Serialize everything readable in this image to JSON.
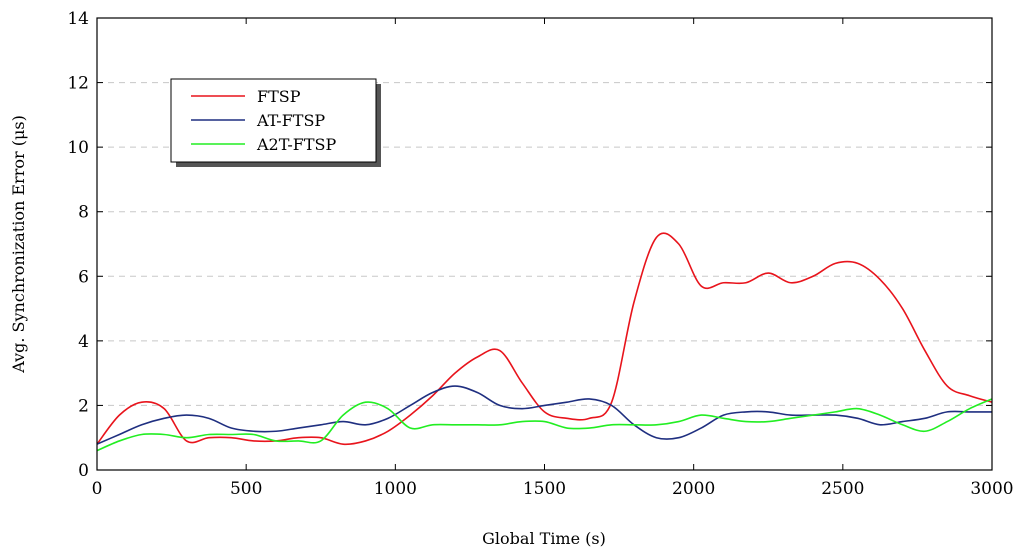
{
  "chart_data": {
    "type": "line",
    "xlabel": "Global Time (s)",
    "ylabel": "Avg. Synchronization Error (μs)",
    "xlim": [
      0,
      3000
    ],
    "ylim": [
      0,
      14
    ],
    "xticks": [
      0,
      500,
      1000,
      1500,
      2000,
      2500,
      3000
    ],
    "yticks": [
      0,
      2,
      4,
      6,
      8,
      10,
      12,
      14
    ],
    "grid": "horizontal-dashed",
    "legend_position": "top-left",
    "series": [
      {
        "name": "FTSP",
        "color": "#e8141c",
        "x": [
          0,
          75,
          150,
          225,
          300,
          375,
          450,
          525,
          600,
          675,
          750,
          825,
          900,
          975,
          1050,
          1125,
          1200,
          1275,
          1350,
          1425,
          1500,
          1575,
          1650,
          1725,
          1800,
          1875,
          1950,
          2025,
          2100,
          2175,
          2250,
          2325,
          2400,
          2475,
          2550,
          2625,
          2700,
          2775,
          2850,
          2925,
          3000
        ],
        "y": [
          0.8,
          1.7,
          2.1,
          1.9,
          0.9,
          1.0,
          1.0,
          0.9,
          0.9,
          1.0,
          1.0,
          0.8,
          0.9,
          1.2,
          1.7,
          2.3,
          3.0,
          3.5,
          3.7,
          2.7,
          1.8,
          1.6,
          1.6,
          2.1,
          5.2,
          7.2,
          7.0,
          5.7,
          5.8,
          5.8,
          6.1,
          5.8,
          6.0,
          6.4,
          6.4,
          5.9,
          5.0,
          3.7,
          2.6,
          2.3,
          2.1
        ]
      },
      {
        "name": "AT-FTSP",
        "color": "#1f2f80",
        "x": [
          0,
          75,
          150,
          225,
          300,
          375,
          450,
          525,
          600,
          675,
          750,
          825,
          900,
          975,
          1050,
          1125,
          1200,
          1275,
          1350,
          1425,
          1500,
          1575,
          1650,
          1725,
          1800,
          1875,
          1950,
          2025,
          2100,
          2175,
          2250,
          2325,
          2400,
          2475,
          2550,
          2625,
          2700,
          2775,
          2850,
          2925,
          3000
        ],
        "y": [
          0.8,
          1.1,
          1.4,
          1.6,
          1.7,
          1.6,
          1.3,
          1.2,
          1.2,
          1.3,
          1.4,
          1.5,
          1.4,
          1.6,
          2.0,
          2.4,
          2.6,
          2.4,
          2.0,
          1.9,
          2.0,
          2.1,
          2.2,
          2.0,
          1.4,
          1.0,
          1.0,
          1.3,
          1.7,
          1.8,
          1.8,
          1.7,
          1.7,
          1.7,
          1.6,
          1.4,
          1.5,
          1.6,
          1.8,
          1.8,
          1.8
        ]
      },
      {
        "name": "A2T-FTSP",
        "color": "#22ee22",
        "x": [
          0,
          75,
          150,
          225,
          300,
          375,
          450,
          525,
          600,
          675,
          750,
          825,
          900,
          975,
          1050,
          1125,
          1200,
          1275,
          1350,
          1425,
          1500,
          1575,
          1650,
          1725,
          1800,
          1875,
          1950,
          2025,
          2100,
          2175,
          2250,
          2325,
          2400,
          2475,
          2550,
          2625,
          2700,
          2775,
          2850,
          2925,
          3000
        ],
        "y": [
          0.6,
          0.9,
          1.1,
          1.1,
          1.0,
          1.1,
          1.1,
          1.1,
          0.9,
          0.9,
          0.9,
          1.7,
          2.1,
          1.9,
          1.3,
          1.4,
          1.4,
          1.4,
          1.4,
          1.5,
          1.5,
          1.3,
          1.3,
          1.4,
          1.4,
          1.4,
          1.5,
          1.7,
          1.6,
          1.5,
          1.5,
          1.6,
          1.7,
          1.8,
          1.9,
          1.7,
          1.4,
          1.2,
          1.5,
          1.9,
          2.2
        ]
      }
    ]
  }
}
